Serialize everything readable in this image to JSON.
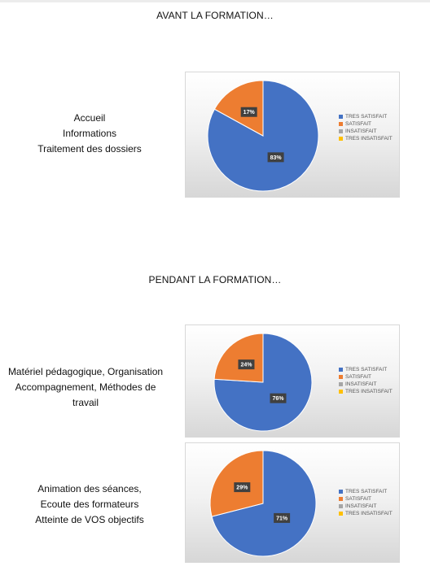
{
  "page": {
    "avant_title": "AVANT LA FORMATION…",
    "pendant_title": "PENDANT LA FORMATION…"
  },
  "legend": {
    "items": [
      {
        "label": "TRES SATISFAIT",
        "color": "#4472C4"
      },
      {
        "label": "SATISFAIT",
        "color": "#ED7D31"
      },
      {
        "label": "INSATISFAIT",
        "color": "#A5A5A5"
      },
      {
        "label": "TRES INSATISFAIT",
        "color": "#FFC000"
      }
    ]
  },
  "rows": [
    {
      "label_lines": [
        "Accueil",
        "Informations",
        "Traitement des dossiers"
      ]
    },
    {
      "label_lines": [
        "Matériel pédagogique, Organisation",
        "Accompagnement, Méthodes de",
        "travail"
      ]
    },
    {
      "label_lines": [
        "Animation des séances,",
        "Ecoute des formateurs",
        "Atteinte de VOS objectifs"
      ]
    }
  ],
  "chart_data": [
    {
      "type": "pie",
      "categories": [
        "TRES SATISFAIT",
        "SATISFAIT",
        "INSATISFAIT",
        "TRES INSATISFAIT"
      ],
      "values": [
        83,
        17,
        0,
        0
      ],
      "data_labels": [
        "83%",
        "17%",
        "",
        ""
      ],
      "legend_position": "right"
    },
    {
      "type": "pie",
      "categories": [
        "TRES SATISFAIT",
        "SATISFAIT",
        "INSATISFAIT",
        "TRES INSATISFAIT"
      ],
      "values": [
        76,
        24,
        0,
        0
      ],
      "data_labels": [
        "76%",
        "24%",
        "",
        ""
      ],
      "legend_position": "right"
    },
    {
      "type": "pie",
      "categories": [
        "TRES SATISFAIT",
        "SATISFAIT",
        "INSATISFAIT",
        "TRES INSATISFAIT"
      ],
      "values": [
        71,
        29,
        0,
        0
      ],
      "data_labels": [
        "71%",
        "29%",
        "",
        ""
      ],
      "legend_position": "right"
    }
  ]
}
